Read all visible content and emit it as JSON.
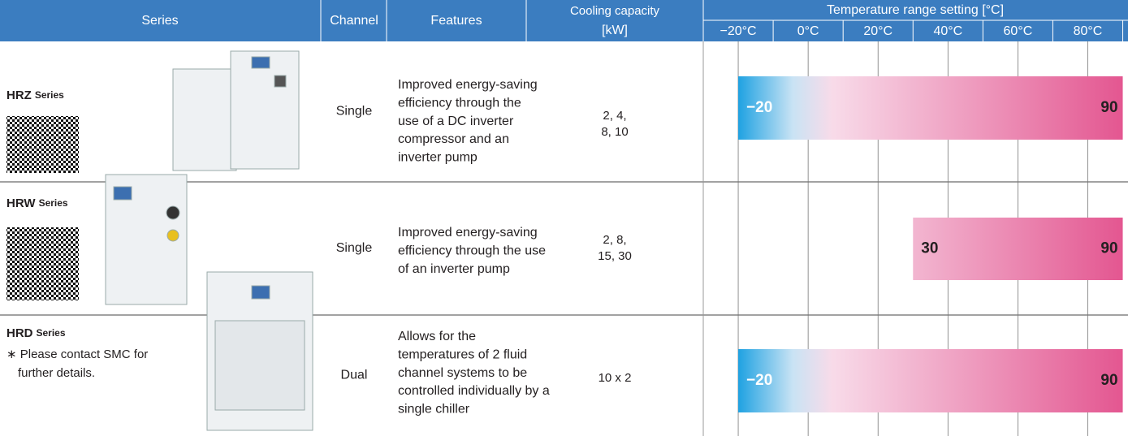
{
  "header": {
    "series": "Series",
    "channel": "Channel",
    "features": "Features",
    "cooling": [
      "Cooling capacity",
      "[kW]"
    ],
    "temperature": "Temperature range setting  [°C]"
  },
  "rows": [
    {
      "name": "HRZ",
      "suffix": "Series",
      "channel": "Single",
      "features": [
        "Improved energy-saving",
        "efficiency through the",
        "use of a DC inverter",
        "compressor and an",
        "inverter pump"
      ],
      "cooling": [
        "2, 4,",
        "8, 10"
      ]
    },
    {
      "name": "HRW",
      "suffix": "Series",
      "channel": "Single",
      "features": [
        "Improved energy-saving",
        "efficiency through the use",
        "of an inverter pump"
      ],
      "cooling": [
        "2, 8,",
        "15, 30"
      ]
    },
    {
      "name": "HRD",
      "suffix": "Series",
      "note": [
        "∗ Please contact SMC for",
        "further details."
      ],
      "channel": "Dual",
      "features": [
        "Allows for the",
        "temperatures of 2 fluid",
        "channel systems to be",
        "controlled individually by a",
        "single chiller"
      ],
      "cooling": [
        "10 x 2"
      ]
    }
  ],
  "chart_data": {
    "type": "range-bar",
    "xlim": [
      -30,
      91.5
    ],
    "xticks": [
      {
        "value": -20,
        "label": "−20°C"
      },
      {
        "value": 0,
        "label": "0°C"
      },
      {
        "value": 20,
        "label": "20°C"
      },
      {
        "value": 40,
        "label": "40°C"
      },
      {
        "value": 60,
        "label": "60°C"
      },
      {
        "value": 80,
        "label": "80°C"
      }
    ],
    "grid": true,
    "values": [
      [
        -20,
        90
      ],
      [
        30,
        90
      ],
      [
        -20,
        90
      ]
    ],
    "value_labels": [
      [
        "−20",
        "90"
      ],
      [
        "30",
        "90"
      ],
      [
        "−20",
        "90"
      ]
    ]
  }
}
